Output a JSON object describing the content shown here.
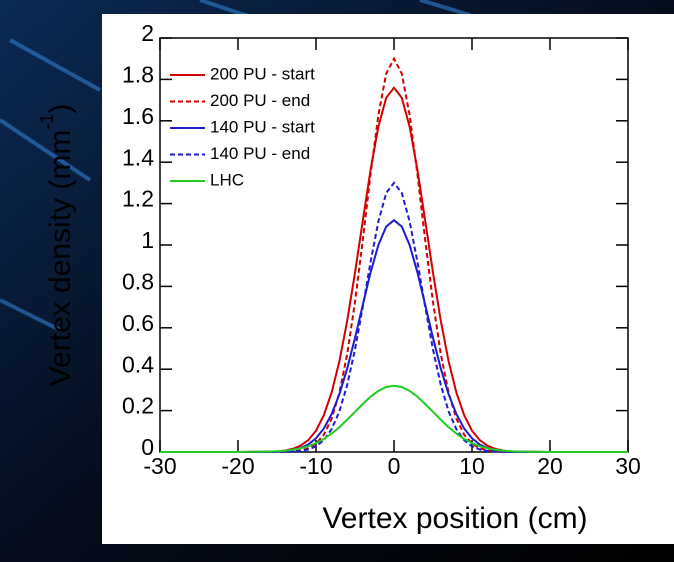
{
  "chart_data": {
    "type": "line",
    "xlabel": "Vertex position (cm)",
    "ylabel": "Vertex density (mm",
    "ylabel_superscript": "-1",
    "ylabel_end": ")",
    "x": [
      -30,
      -20,
      -16,
      -15,
      -14,
      -13,
      -12,
      -11,
      -10,
      -9,
      -8,
      -7,
      -6,
      -5,
      -4,
      -3,
      -2,
      -1,
      0,
      1,
      2,
      3,
      4,
      5,
      6,
      7,
      8,
      9,
      10,
      11,
      12,
      13,
      14,
      15,
      16,
      20,
      30
    ],
    "series": [
      {
        "name": "200 PU - start",
        "color": "#d40000",
        "dash": false,
        "values": [
          0,
          0,
          0.001,
          0.003,
          0.007,
          0.015,
          0.03,
          0.057,
          0.103,
          0.178,
          0.287,
          0.438,
          0.634,
          0.866,
          1.118,
          1.364,
          1.572,
          1.711,
          1.76,
          1.711,
          1.572,
          1.364,
          1.118,
          0.866,
          0.634,
          0.438,
          0.287,
          0.178,
          0.103,
          0.057,
          0.03,
          0.015,
          0.007,
          0.003,
          0.001,
          0,
          0
        ]
      },
      {
        "name": "200 PU - end",
        "color": "#d40000",
        "dash": true,
        "values": [
          0,
          0,
          0,
          0,
          0.001,
          0.003,
          0.007,
          0.018,
          0.04,
          0.083,
          0.161,
          0.287,
          0.473,
          0.724,
          1.024,
          1.343,
          1.628,
          1.828,
          1.9,
          1.828,
          1.628,
          1.343,
          1.024,
          0.724,
          0.473,
          0.287,
          0.161,
          0.083,
          0.04,
          0.018,
          0.007,
          0.003,
          0.001,
          0,
          0,
          0,
          0
        ]
      },
      {
        "name": "140 PU - start",
        "color": "#1c1cd0",
        "dash": false,
        "values": [
          0,
          0,
          0.001,
          0.002,
          0.004,
          0.009,
          0.019,
          0.036,
          0.066,
          0.113,
          0.183,
          0.279,
          0.403,
          0.551,
          0.711,
          0.868,
          1.0,
          1.089,
          1.12,
          1.089,
          1.0,
          0.868,
          0.711,
          0.551,
          0.403,
          0.279,
          0.183,
          0.113,
          0.066,
          0.036,
          0.019,
          0.009,
          0.004,
          0.002,
          0.001,
          0,
          0
        ]
      },
      {
        "name": "140 PU - end",
        "color": "#1c1cd0",
        "dash": true,
        "values": [
          0,
          0,
          0,
          0,
          0.001,
          0.002,
          0.005,
          0.012,
          0.027,
          0.057,
          0.11,
          0.196,
          0.324,
          0.495,
          0.701,
          0.919,
          1.114,
          1.251,
          1.3,
          1.251,
          1.114,
          0.919,
          0.701,
          0.495,
          0.324,
          0.196,
          0.11,
          0.057,
          0.027,
          0.012,
          0.005,
          0.002,
          0.001,
          0,
          0,
          0,
          0
        ]
      },
      {
        "name": "LHC",
        "color": "#22cc22",
        "dash": false,
        "values": [
          0,
          0,
          0.002,
          0.004,
          0.006,
          0.011,
          0.018,
          0.028,
          0.043,
          0.063,
          0.089,
          0.12,
          0.156,
          0.194,
          0.232,
          0.267,
          0.295,
          0.314,
          0.32,
          0.314,
          0.295,
          0.267,
          0.232,
          0.194,
          0.156,
          0.12,
          0.089,
          0.063,
          0.043,
          0.028,
          0.018,
          0.011,
          0.006,
          0.004,
          0.002,
          0,
          0
        ]
      }
    ],
    "xlim": [
      -30,
      30
    ],
    "xticks": [
      -30,
      -20,
      -10,
      0,
      10,
      20,
      30
    ],
    "ylim": [
      0,
      2
    ],
    "yticks": [
      0,
      0.2,
      0.4,
      0.6,
      0.8,
      1,
      1.2,
      1.4,
      1.6,
      1.8,
      2
    ],
    "legend": "upper left"
  }
}
